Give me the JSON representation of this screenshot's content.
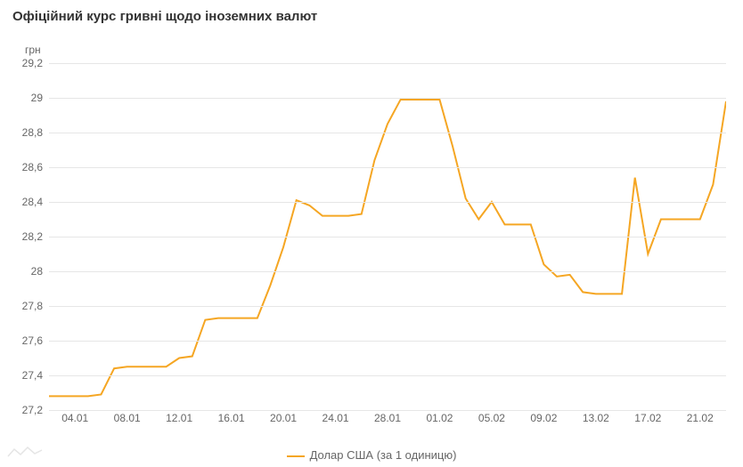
{
  "title": "Офіційний курс гривні щодо іноземних валют",
  "chart": {
    "type": "line",
    "y_unit_label": "грн",
    "ylim": [
      27.2,
      29.2
    ],
    "ytick_step": 0.2,
    "y_ticks": [
      27.2,
      27.4,
      27.6,
      27.8,
      28.0,
      28.2,
      28.4,
      28.6,
      28.8,
      29.0,
      29.2
    ],
    "y_tick_labels": [
      "27,2",
      "27,4",
      "27,6",
      "27,8",
      "28",
      "28,2",
      "28,4",
      "28,6",
      "28,8",
      "29",
      "29,2"
    ],
    "x_tick_labels": [
      "04.01",
      "08.01",
      "12.01",
      "16.01",
      "20.01",
      "24.01",
      "28.01",
      "01.02",
      "05.02",
      "09.02",
      "13.02",
      "17.02",
      "21.02"
    ],
    "x_tick_positions": [
      2,
      6,
      10,
      14,
      18,
      22,
      26,
      30,
      34,
      38,
      42,
      46,
      50
    ],
    "x_count": 53,
    "series": {
      "name": "Долар США (за 1 одиницю)",
      "color": "#f5a623",
      "line_width": 2,
      "values": [
        27.28,
        27.28,
        27.28,
        27.28,
        27.29,
        27.44,
        27.45,
        27.45,
        27.45,
        27.45,
        27.5,
        27.51,
        27.72,
        27.73,
        27.73,
        27.73,
        27.73,
        27.92,
        28.14,
        28.41,
        28.38,
        28.32,
        28.32,
        28.32,
        28.33,
        28.64,
        28.85,
        28.99,
        28.99,
        28.99,
        28.99,
        28.72,
        28.42,
        28.3,
        28.4,
        28.27,
        28.27,
        28.27,
        28.04,
        27.97,
        27.98,
        27.88,
        27.87,
        27.87,
        27.87,
        28.54,
        28.1,
        28.3,
        28.3,
        28.3,
        28.3,
        28.5,
        28.98
      ]
    },
    "grid_color": "#e6e6e6",
    "background_color": "#ffffff",
    "axis_label_color": "#666666",
    "axis_label_fontsize": 12
  },
  "legend": {
    "label": "Долар США (за 1 одиницю)"
  }
}
